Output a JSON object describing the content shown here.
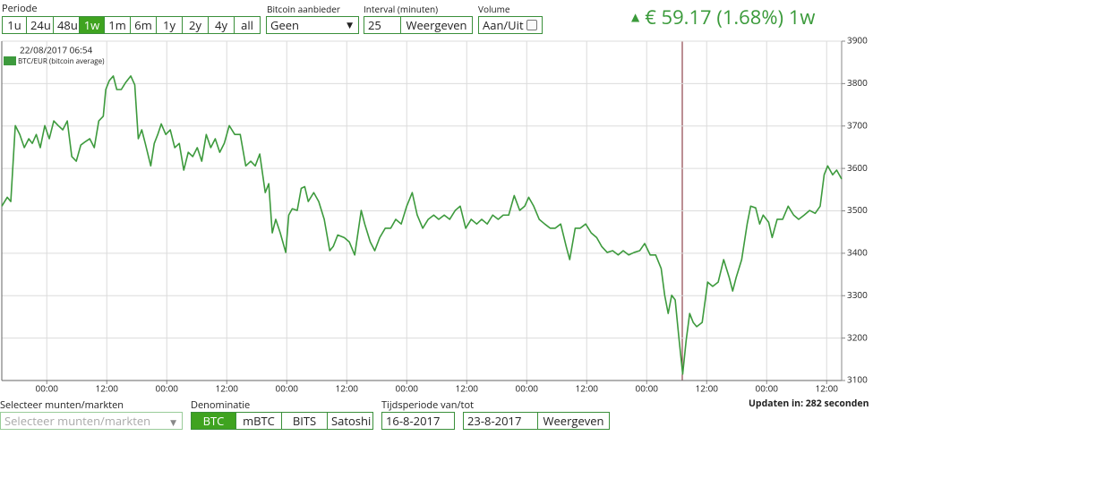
{
  "toolbar": {
    "period": {
      "label": "Periode",
      "options": [
        "1u",
        "24u",
        "48u",
        "1w",
        "1m",
        "6m",
        "1y",
        "2y",
        "4y",
        "all"
      ],
      "active_index": 3
    },
    "provider": {
      "label": "Bitcoin aanbieder",
      "value": "Geen"
    },
    "interval": {
      "label": "Interval (minuten)",
      "value": "25",
      "button": "Weergeven"
    },
    "volume": {
      "label": "Volume",
      "toggle": "Aan/Uit"
    },
    "price_change": "€ 59.17 (1.68%) 1w"
  },
  "chart_data": {
    "type": "line",
    "tooltip": "22/08/2017 06:54",
    "legend": "top-left",
    "grid": true,
    "x": [
      -9,
      -7.9,
      -7.2,
      -6.3,
      -5.4,
      -4.5,
      -3.6,
      -2.9,
      -2.1,
      -1.3,
      -0.4,
      0.5,
      1.4,
      2.3,
      3.2,
      4.1,
      5,
      5.9,
      6.8,
      7.7,
      8.6,
      9.5,
      10.4,
      11.3,
      11.8,
      12.5,
      13.3,
      14,
      14.9,
      15.8,
      16.8,
      17.6,
      18.3,
      19,
      19.7,
      20.8,
      21.5,
      22.2,
      22.9,
      23.8,
      24.7,
      25.6,
      26.5,
      27.4,
      28.3,
      29.2,
      30.1,
      31,
      31.9,
      32.8,
      33.7,
      34.6,
      35.5,
      36.5,
      37.6,
      38.7,
      39.8,
      40.8,
      41.7,
      42.6,
      43.7,
      44.4,
      45.1,
      45.8,
      46.7,
      47.8,
      48.4,
      49.1,
      50.1,
      50.9,
      51.6,
      52.3,
      53.4,
      54.4,
      55.5,
      56.6,
      57.3,
      58.2,
      59.5,
      60.5,
      61.6,
      62.9,
      63.6,
      64.7,
      65.6,
      66.6,
      67.7,
      68.8,
      69.8,
      70.9,
      72,
      73.1,
      74.1,
      75.2,
      76.3,
      77.4,
      78.4,
      79.5,
      80.6,
      81.7,
      82.7,
      83.8,
      84.9,
      86,
      87,
      88.1,
      89.2,
      90.3,
      91.3,
      92.4,
      93.5,
      94.6,
      95.6,
      96.4,
      97.4,
      98.5,
      99.6,
      100.7,
      101.7,
      102.8,
      103.9,
      104.6,
      105.7,
      106.7,
      107.8,
      108.9,
      110,
      111,
      112.1,
      113.2,
      114.3,
      115.3,
      116.4,
      117.5,
      118.6,
      119.6,
      120.7,
      121.8,
      122.9,
      123.6,
      124.3,
      125,
      125.7,
      126.4,
      127.2,
      127.9,
      128.6,
      129.3,
      130,
      131.1,
      132.2,
      133.2,
      134.3,
      135.4,
      136.5,
      137.2,
      137.9,
      139,
      140.1,
      140.8,
      141.8,
      142.6,
      143.3,
      144.4,
      145.1,
      146.1,
      147.2,
      148.3,
      149.4,
      150.4,
      151.5,
      152.6,
      153.7,
      154.7,
      155.5,
      156.2,
      157.2,
      158,
      159
    ],
    "series": [
      {
        "name": "BTC/EUR (bitcoin average)",
        "color": "#3d9a3d",
        "values": [
          3511,
          3532,
          3522,
          3701,
          3680,
          3649,
          3670,
          3659,
          3680,
          3649,
          3701,
          3670,
          3712,
          3701,
          3691,
          3712,
          3628,
          3617,
          3655,
          3663,
          3670,
          3649,
          3712,
          3723,
          3786,
          3807,
          3818,
          3786,
          3786,
          3803,
          3818,
          3797,
          3670,
          3691,
          3659,
          3606,
          3659,
          3680,
          3705,
          3680,
          3691,
          3649,
          3659,
          3596,
          3638,
          3628,
          3649,
          3617,
          3680,
          3649,
          3670,
          3638,
          3659,
          3701,
          3680,
          3680,
          3606,
          3617,
          3606,
          3634,
          3543,
          3564,
          3448,
          3480,
          3448,
          3402,
          3490,
          3505,
          3501,
          3553,
          3557,
          3522,
          3543,
          3522,
          3480,
          3406,
          3416,
          3443,
          3437,
          3427,
          3396,
          3501,
          3469,
          3427,
          3406,
          3437,
          3459,
          3459,
          3480,
          3469,
          3511,
          3543,
          3490,
          3459,
          3480,
          3490,
          3480,
          3490,
          3480,
          3501,
          3511,
          3459,
          3480,
          3469,
          3480,
          3469,
          3490,
          3480,
          3490,
          3490,
          3536,
          3501,
          3511,
          3532,
          3511,
          3480,
          3469,
          3459,
          3459,
          3469,
          3416,
          3385,
          3459,
          3459,
          3469,
          3448,
          3437,
          3416,
          3402,
          3406,
          3396,
          3406,
          3396,
          3402,
          3406,
          3423,
          3396,
          3396,
          3364,
          3301,
          3258,
          3301,
          3290,
          3206,
          3115,
          3195,
          3258,
          3237,
          3227,
          3237,
          3332,
          3322,
          3332,
          3385,
          3343,
          3311,
          3343,
          3385,
          3469,
          3511,
          3507,
          3469,
          3490,
          3473,
          3437,
          3480,
          3480,
          3511,
          3490,
          3480,
          3490,
          3501,
          3494,
          3511,
          3585,
          3606,
          3585,
          3596,
          3575
        ]
      }
    ],
    "xlim": [
      -9,
      159
    ],
    "xticks": [
      {
        "value": 0,
        "label": "00:00"
      },
      {
        "value": 12,
        "label": "12:00"
      },
      {
        "value": 24,
        "label": "00:00"
      },
      {
        "value": 36,
        "label": "12:00"
      },
      {
        "value": 48,
        "label": "00:00"
      },
      {
        "value": 60,
        "label": "12:00"
      },
      {
        "value": 72,
        "label": "00:00"
      },
      {
        "value": 84,
        "label": "12:00"
      },
      {
        "value": 96,
        "label": "00:00"
      },
      {
        "value": 108,
        "label": "12:00"
      },
      {
        "value": 120,
        "label": "00:00"
      },
      {
        "value": 132,
        "label": "12:00"
      },
      {
        "value": 144,
        "label": "00:00"
      },
      {
        "value": 156,
        "label": "12:00"
      }
    ],
    "ylim": [
      3100,
      3900
    ],
    "yticks": [
      3100,
      3200,
      3300,
      3400,
      3500,
      3600,
      3700,
      3800,
      3900
    ]
  },
  "footer": {
    "markets": {
      "label": "Selecteer munten/markten",
      "placeholder": "Selecteer munten/markten"
    },
    "denomination": {
      "label": "Denominatie",
      "options": [
        "BTC",
        "mBTC",
        "BITS",
        "Satoshi"
      ],
      "active_index": 0
    },
    "period": {
      "label": "Tijdsperiode van/tot",
      "from": "16-8-2017",
      "to": "23-8-2017",
      "button": "Weergeven"
    },
    "update": "Updaten in: 282 seconden"
  }
}
